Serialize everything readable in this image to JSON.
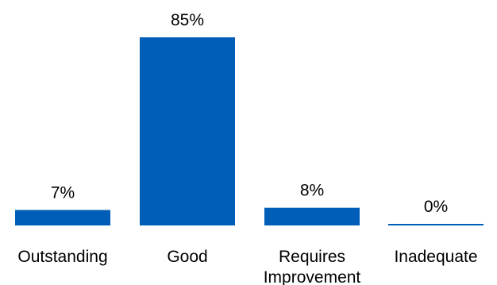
{
  "chart_data": {
    "type": "bar",
    "categories": [
      "Outstanding",
      "Good",
      "Requires Improvement",
      "Inadequate"
    ],
    "category_lines": [
      [
        "Outstanding"
      ],
      [
        "Good"
      ],
      [
        "Requires",
        "Improvement"
      ],
      [
        "Inadequate"
      ]
    ],
    "values": [
      7,
      85,
      8,
      0
    ],
    "value_labels": [
      "7%",
      "85%",
      "8%",
      "0%"
    ],
    "ylim": [
      0,
      85
    ],
    "grid": false,
    "legend": "none",
    "bar_color": "#005EB8"
  }
}
